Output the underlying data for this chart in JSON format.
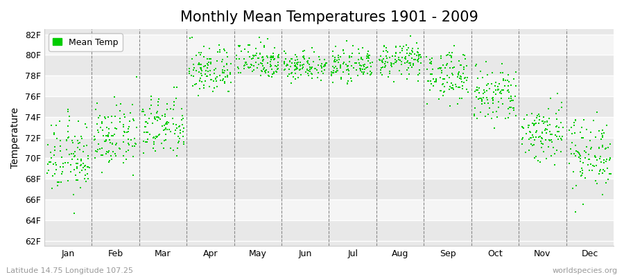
{
  "title": "Monthly Mean Temperatures 1901 - 2009",
  "ylabel": "Temperature",
  "xlabel_labels": [
    "Jan",
    "Feb",
    "Mar",
    "Apr",
    "May",
    "Jun",
    "Jul",
    "Aug",
    "Sep",
    "Oct",
    "Nov",
    "Dec"
  ],
  "ytick_labels": [
    "62F",
    "64F",
    "66F",
    "68F",
    "70F",
    "72F",
    "74F",
    "76F",
    "78F",
    "80F",
    "82F"
  ],
  "ytick_values": [
    62,
    64,
    66,
    68,
    70,
    72,
    74,
    76,
    78,
    80,
    82
  ],
  "ylim": [
    61.5,
    82.5
  ],
  "dot_color": "#00CC00",
  "dot_size": 4,
  "background_color": "#ffffff",
  "plot_bg_bands": [
    "#e8e8e8",
    "#f5f5f5"
  ],
  "grid_color": "#ffffff",
  "dashed_line_color": "#888888",
  "legend_label": "Mean Temp",
  "footer_left": "Latitude 14.75 Longitude 107.25",
  "footer_right": "worldspecies.org",
  "title_fontsize": 15,
  "axis_fontsize": 10,
  "tick_fontsize": 9,
  "footer_fontsize": 8,
  "num_years": 109,
  "monthly_means": [
    70.0,
    72.0,
    73.0,
    78.5,
    79.5,
    79.0,
    79.0,
    79.5,
    78.0,
    76.0,
    72.5,
    70.5
  ],
  "monthly_stds": [
    1.8,
    1.5,
    1.5,
    1.2,
    0.9,
    0.7,
    0.7,
    0.8,
    1.2,
    1.5,
    1.5,
    1.8
  ],
  "seed": 12345
}
